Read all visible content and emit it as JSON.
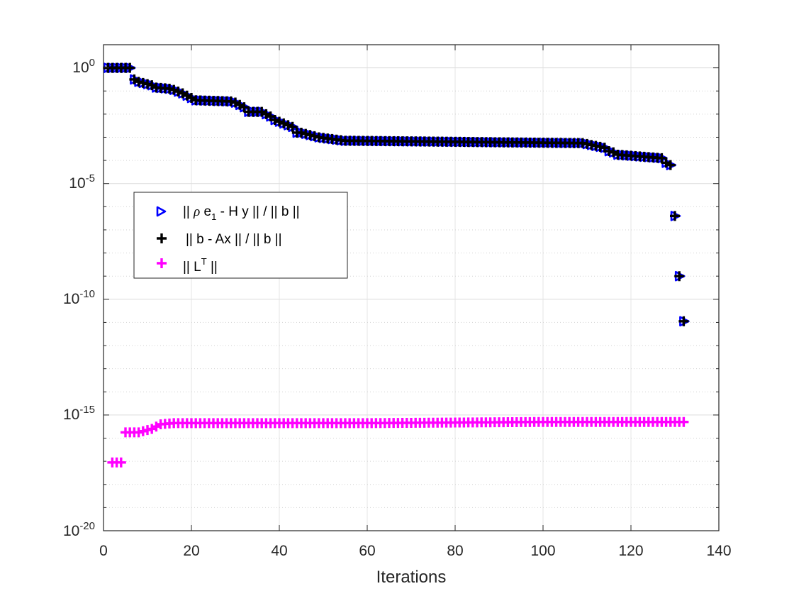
{
  "chart_data": {
    "type": "scatter",
    "title": "",
    "xlabel": "Iterations",
    "ylabel": "",
    "xlim": [
      0,
      140
    ],
    "ylim": [
      1e-20,
      10
    ],
    "yscale": "log",
    "grid": "on (major and minor y)",
    "legend_position": "left, mid-upper",
    "x_ticks": [
      "0",
      "20",
      "40",
      "60",
      "80",
      "100",
      "120",
      "140"
    ],
    "y_ticks": [
      {
        "base": "10",
        "exp": "-20"
      },
      {
        "base": "10",
        "exp": "-15"
      },
      {
        "base": "10",
        "exp": "-10"
      },
      {
        "base": "10",
        "exp": "-5"
      },
      {
        "base": "10",
        "exp": "0"
      }
    ],
    "legend": {
      "entry1": {
        "a": "|| ",
        "rho": "ρ",
        "b": " e",
        "sub": "1",
        "c": " - H y || / || b ||"
      },
      "entry2": {
        "text": " || b - Ax || / || b ||"
      },
      "entry3": {
        "a": "|| L",
        "sup": "T",
        "b": " ||"
      }
    },
    "series": [
      {
        "marker": "triangle-right",
        "color": "#0000ff",
        "segments": [
          [
            1,
            6,
            0,
            0
          ],
          [
            7,
            8,
            -0.5,
            -0.6
          ],
          [
            9,
            11,
            -0.65,
            -0.75
          ],
          [
            12,
            15,
            -0.85,
            -0.9
          ],
          [
            16,
            18,
            -0.95,
            -1.1
          ],
          [
            19,
            20,
            -1.2,
            -1.3
          ],
          [
            21,
            29,
            -1.4,
            -1.45
          ],
          [
            30,
            32,
            -1.5,
            -1.7
          ],
          [
            33,
            36,
            -1.9,
            -1.9
          ],
          [
            37,
            38,
            -2.0,
            -2.1
          ],
          [
            39,
            43,
            -2.25,
            -2.55
          ],
          [
            44,
            45,
            -2.8,
            -2.8
          ],
          [
            46,
            48,
            -2.85,
            -2.95
          ],
          [
            49,
            55,
            -3.0,
            -3.15
          ],
          [
            56,
            108,
            -3.15,
            -3.25
          ],
          [
            109,
            114,
            -3.25,
            -3.45
          ],
          [
            115,
            116,
            -3.6,
            -3.65
          ],
          [
            117,
            127,
            -3.75,
            -3.9
          ],
          [
            128,
            129,
            -4.1,
            -4.2
          ]
        ],
        "points": [
          [
            130,
            -6.4
          ],
          [
            131,
            -9.0
          ],
          [
            132,
            -10.95
          ]
        ]
      },
      {
        "marker": "plus",
        "color": "#000000",
        "segments": [
          [
            1,
            6,
            0,
            0
          ],
          [
            7,
            8,
            -0.5,
            -0.6
          ],
          [
            9,
            11,
            -0.65,
            -0.75
          ],
          [
            12,
            15,
            -0.85,
            -0.9
          ],
          [
            16,
            18,
            -0.95,
            -1.1
          ],
          [
            19,
            20,
            -1.2,
            -1.3
          ],
          [
            21,
            29,
            -1.4,
            -1.45
          ],
          [
            30,
            32,
            -1.5,
            -1.7
          ],
          [
            33,
            36,
            -1.9,
            -1.9
          ],
          [
            37,
            38,
            -2.0,
            -2.1
          ],
          [
            39,
            43,
            -2.25,
            -2.55
          ],
          [
            44,
            45,
            -2.8,
            -2.8
          ],
          [
            46,
            48,
            -2.85,
            -2.95
          ],
          [
            49,
            55,
            -3.0,
            -3.15
          ],
          [
            56,
            108,
            -3.15,
            -3.25
          ],
          [
            109,
            114,
            -3.25,
            -3.45
          ],
          [
            115,
            116,
            -3.6,
            -3.65
          ],
          [
            117,
            127,
            -3.75,
            -3.9
          ],
          [
            128,
            129,
            -4.1,
            -4.2
          ]
        ],
        "points": [
          [
            130,
            -6.4
          ],
          [
            131,
            -9.0
          ],
          [
            132,
            -10.95
          ]
        ]
      },
      {
        "marker": "plus",
        "color": "#ff00ff",
        "segments": [
          [
            2,
            4,
            -17.05,
            -17.05
          ],
          [
            5,
            8,
            -15.75,
            -15.75
          ],
          [
            9,
            11,
            -15.7,
            -15.6
          ],
          [
            12,
            12,
            -15.5,
            -15.5
          ],
          [
            13,
            16,
            -15.4,
            -15.35
          ],
          [
            17,
            60,
            -15.35,
            -15.35
          ],
          [
            61,
            100,
            -15.35,
            -15.3
          ],
          [
            101,
            132,
            -15.3,
            -15.3
          ]
        ],
        "points": []
      }
    ]
  }
}
